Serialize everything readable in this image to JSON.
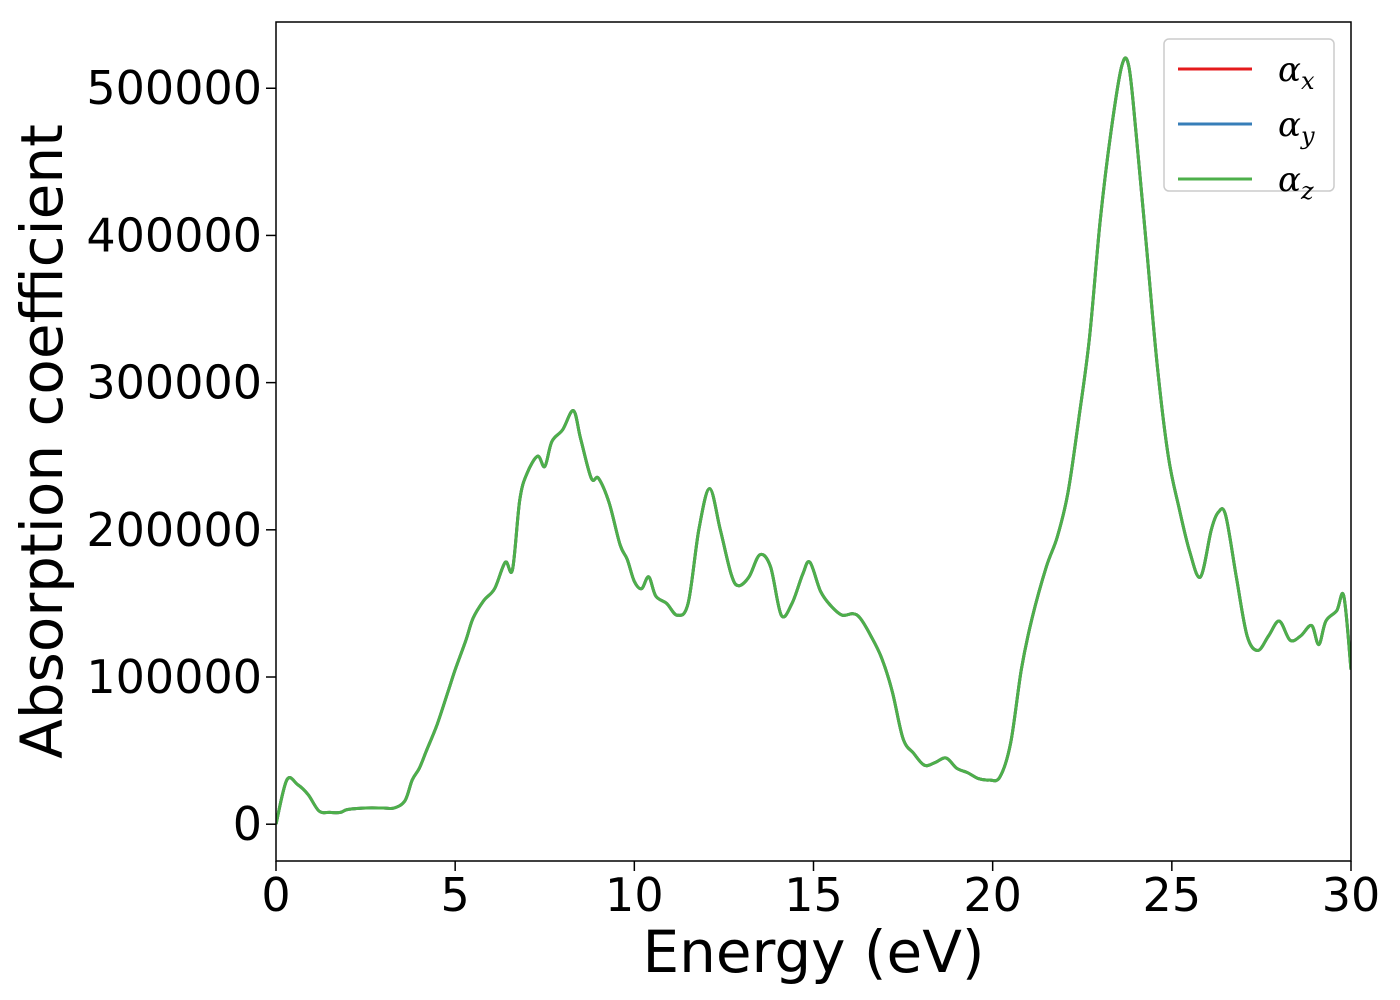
{
  "chart_data": {
    "type": "line",
    "title": "",
    "xlabel": "Energy (eV)",
    "ylabel": "Absorption coefficient",
    "xlim": [
      0,
      30
    ],
    "ylim": [
      -25000,
      545000
    ],
    "xticks": [
      0,
      5,
      10,
      15,
      20,
      25,
      30
    ],
    "yticks": [
      0,
      100000,
      200000,
      300000,
      400000,
      500000
    ],
    "grid": false,
    "legend_position": "top-right",
    "x": [
      0.0,
      0.3,
      0.6,
      0.9,
      1.2,
      1.5,
      1.8,
      2.0,
      2.5,
      3.0,
      3.3,
      3.6,
      3.8,
      4.0,
      4.2,
      4.5,
      4.8,
      5.0,
      5.3,
      5.5,
      5.8,
      6.1,
      6.4,
      6.6,
      6.8,
      7.0,
      7.3,
      7.5,
      7.7,
      8.0,
      8.3,
      8.5,
      8.8,
      9.0,
      9.3,
      9.6,
      9.8,
      10.0,
      10.2,
      10.4,
      10.6,
      10.9,
      11.2,
      11.5,
      11.8,
      12.1,
      12.4,
      12.7,
      12.9,
      13.2,
      13.5,
      13.8,
      14.1,
      14.4,
      14.7,
      14.9,
      15.2,
      15.5,
      15.8,
      16.1,
      16.3,
      16.6,
      16.9,
      17.2,
      17.5,
      17.8,
      18.1,
      18.4,
      18.7,
      19.0,
      19.3,
      19.6,
      19.9,
      20.2,
      20.5,
      20.8,
      21.1,
      21.5,
      21.8,
      22.1,
      22.4,
      22.7,
      23.0,
      23.3,
      23.6,
      23.8,
      24.0,
      24.3,
      24.6,
      24.9,
      25.2,
      25.5,
      25.8,
      26.1,
      26.3,
      26.5,
      26.8,
      27.1,
      27.4,
      27.7,
      28.0,
      28.3,
      28.6,
      28.9,
      29.1,
      29.3,
      29.6,
      29.8,
      30.0
    ],
    "series": [
      {
        "name": "αx",
        "symbol": "α",
        "subscript": "x",
        "color": "#e41a1c",
        "values": [
          0,
          30000,
          27000,
          20000,
          9000,
          8000,
          8000,
          10000,
          11000,
          11000,
          11000,
          16000,
          30000,
          38000,
          50000,
          68000,
          90000,
          105000,
          125000,
          140000,
          152000,
          160000,
          178000,
          173000,
          220000,
          238000,
          250000,
          243000,
          260000,
          268000,
          281000,
          262000,
          235000,
          235000,
          218000,
          190000,
          180000,
          165000,
          160000,
          168000,
          155000,
          150000,
          142000,
          150000,
          200000,
          228000,
          200000,
          170000,
          162000,
          168000,
          183000,
          175000,
          142000,
          150000,
          170000,
          178000,
          158000,
          148000,
          142000,
          143000,
          140000,
          128000,
          113000,
          90000,
          58000,
          48000,
          40000,
          42000,
          45000,
          38000,
          35000,
          31000,
          30000,
          32000,
          55000,
          105000,
          140000,
          175000,
          195000,
          225000,
          275000,
          330000,
          410000,
          470000,
          515000,
          515000,
          470000,
          390000,
          310000,
          250000,
          215000,
          185000,
          168000,
          200000,
          212000,
          210000,
          168000,
          128000,
          118000,
          128000,
          138000,
          125000,
          128000,
          135000,
          122000,
          138000,
          145000,
          155000,
          105000
        ]
      },
      {
        "name": "αy",
        "symbol": "α",
        "subscript": "y",
        "color": "#377eb8",
        "values": [
          0,
          30000,
          27000,
          20000,
          9000,
          8000,
          8000,
          10000,
          11000,
          11000,
          11000,
          16000,
          30000,
          38000,
          50000,
          68000,
          90000,
          105000,
          125000,
          140000,
          152000,
          160000,
          178000,
          173000,
          220000,
          238000,
          250000,
          243000,
          260000,
          268000,
          281000,
          262000,
          235000,
          235000,
          218000,
          190000,
          180000,
          165000,
          160000,
          168000,
          155000,
          150000,
          142000,
          150000,
          200000,
          228000,
          200000,
          170000,
          162000,
          168000,
          183000,
          175000,
          142000,
          150000,
          170000,
          178000,
          158000,
          148000,
          142000,
          143000,
          140000,
          128000,
          113000,
          90000,
          58000,
          48000,
          40000,
          42000,
          45000,
          38000,
          35000,
          31000,
          30000,
          32000,
          55000,
          105000,
          140000,
          175000,
          195000,
          225000,
          275000,
          330000,
          410000,
          470000,
          515000,
          515000,
          470000,
          390000,
          310000,
          250000,
          215000,
          185000,
          168000,
          200000,
          212000,
          210000,
          168000,
          128000,
          118000,
          128000,
          138000,
          125000,
          128000,
          135000,
          122000,
          138000,
          145000,
          155000,
          105000
        ]
      },
      {
        "name": "αz",
        "symbol": "α",
        "subscript": "z",
        "color": "#4daf4a",
        "values": [
          0,
          30000,
          27000,
          20000,
          9000,
          8000,
          8000,
          10000,
          11000,
          11000,
          11000,
          16000,
          30000,
          38000,
          50000,
          68000,
          90000,
          105000,
          125000,
          140000,
          152000,
          160000,
          178000,
          173000,
          220000,
          238000,
          250000,
          243000,
          260000,
          268000,
          281000,
          262000,
          235000,
          235000,
          218000,
          190000,
          180000,
          165000,
          160000,
          168000,
          155000,
          150000,
          142000,
          150000,
          200000,
          228000,
          200000,
          170000,
          162000,
          168000,
          183000,
          175000,
          142000,
          150000,
          170000,
          178000,
          158000,
          148000,
          142000,
          143000,
          140000,
          128000,
          113000,
          90000,
          58000,
          48000,
          40000,
          42000,
          45000,
          38000,
          35000,
          31000,
          30000,
          32000,
          55000,
          105000,
          140000,
          175000,
          195000,
          225000,
          275000,
          330000,
          410000,
          470000,
          515000,
          515000,
          470000,
          390000,
          310000,
          250000,
          215000,
          185000,
          168000,
          200000,
          212000,
          210000,
          168000,
          128000,
          118000,
          128000,
          138000,
          125000,
          128000,
          135000,
          122000,
          138000,
          145000,
          155000,
          105000
        ]
      }
    ]
  }
}
